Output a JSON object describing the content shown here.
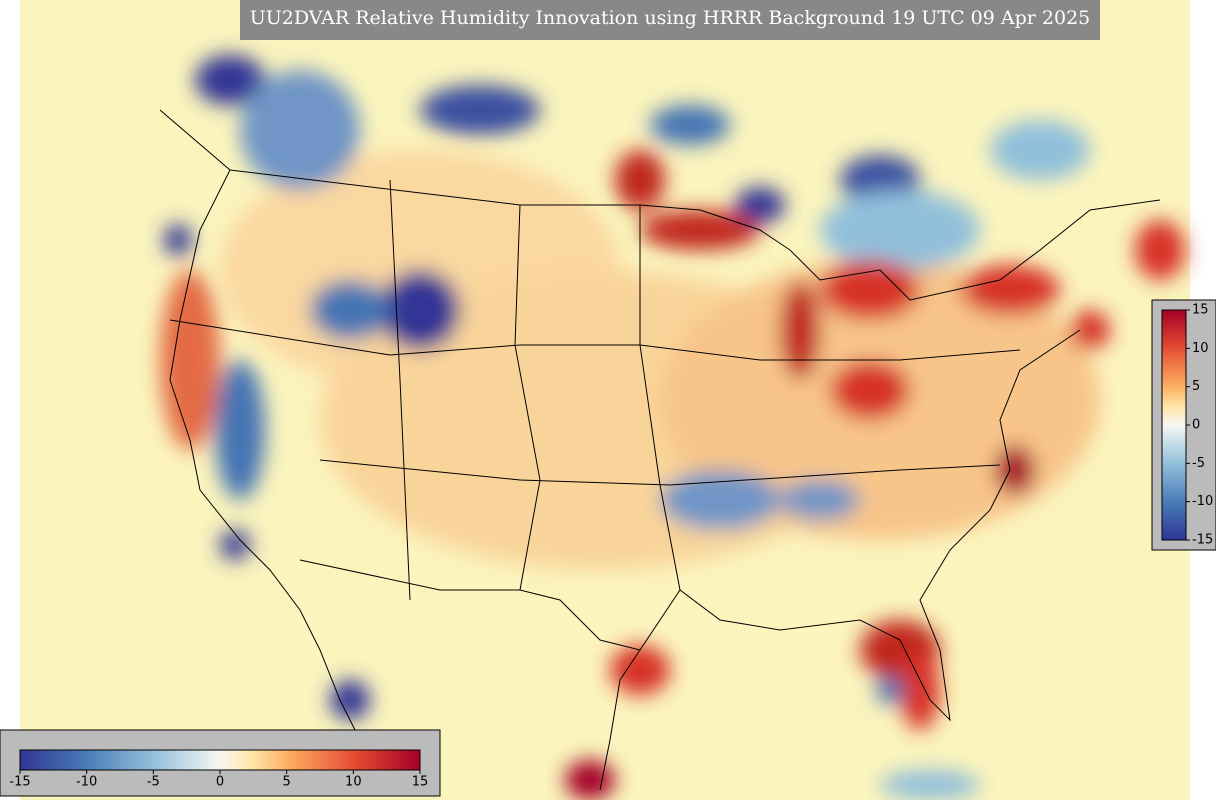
{
  "title": "UU2DVAR Relative Humidity Innovation using HRRR Background 19 UTC 09 Apr 2025",
  "horizontal_colorbar": {
    "range": [
      -15,
      15
    ],
    "ticks": [
      -15,
      -10,
      -5,
      0,
      5,
      10,
      15
    ]
  },
  "vertical_colorbar": {
    "range": [
      -15,
      15
    ],
    "ticks": [
      -15,
      -10,
      -5,
      0,
      5,
      10,
      15
    ]
  }
}
